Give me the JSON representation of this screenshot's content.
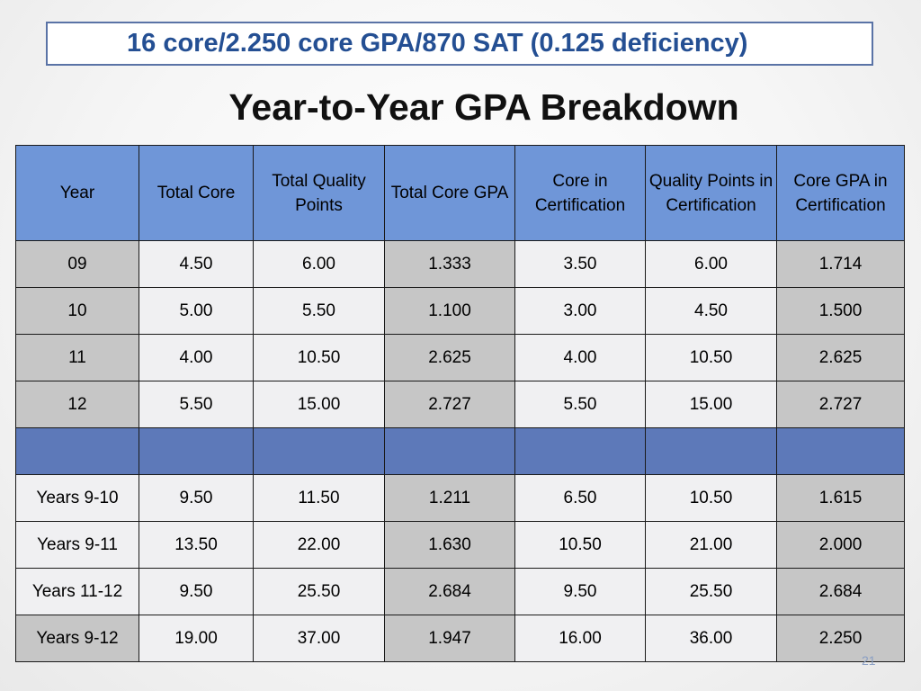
{
  "banner": "16 core/2.250 core GPA/870 SAT (0.125 deficiency)",
  "title": "Year-to-Year GPA Breakdown",
  "table": {
    "headers": [
      "Year",
      "Total Core",
      "Total Quality Points",
      "Total Core GPA",
      "Core in Certification",
      "Quality Points in Certification",
      "Core GPA in Certification"
    ],
    "rows": [
      [
        "09",
        "4.50",
        "6.00",
        "1.333",
        "3.50",
        "6.00",
        "1.714"
      ],
      [
        "10",
        "5.00",
        "5.50",
        "1.100",
        "3.00",
        "4.50",
        "1.500"
      ],
      [
        "11",
        "4.00",
        "10.50",
        "2.625",
        "4.00",
        "10.50",
        "2.625"
      ],
      [
        "12",
        "5.50",
        "15.00",
        "2.727",
        "5.50",
        "15.00",
        "2.727"
      ],
      [
        "",
        "",
        "",
        "",
        "",
        "",
        ""
      ],
      [
        "Years 9-10",
        "9.50",
        "11.50",
        "1.211",
        "6.50",
        "10.50",
        "1.615"
      ],
      [
        "Years 9-11",
        "13.50",
        "22.00",
        "1.630",
        "10.50",
        "21.00",
        "2.000"
      ],
      [
        "Years 11-12",
        "9.50",
        "25.50",
        "2.684",
        "9.50",
        "25.50",
        "2.684"
      ],
      [
        "Years 9-12",
        "19.00",
        "37.00",
        "1.947",
        "16.00",
        "36.00",
        "2.250"
      ]
    ]
  },
  "page_number": "21"
}
